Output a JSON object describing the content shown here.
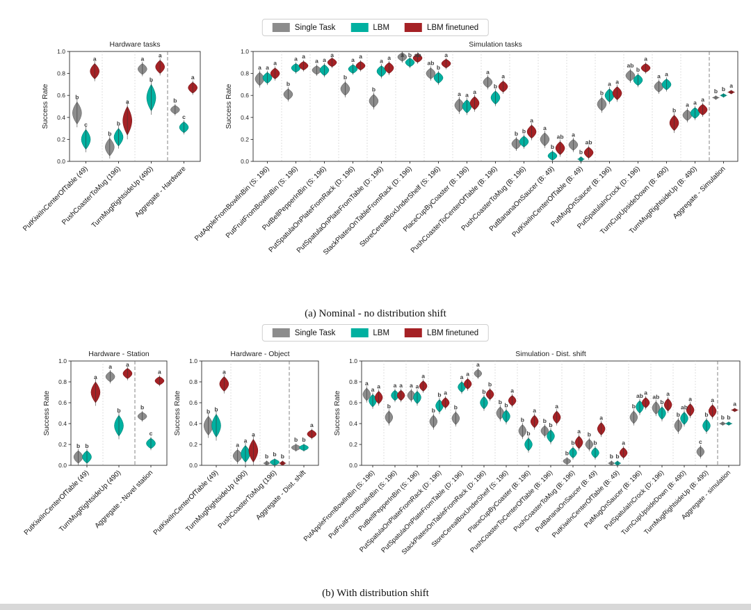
{
  "legend": {
    "items": [
      {
        "label": "Single Task",
        "color": "#8c8c8c"
      },
      {
        "label": "LBM",
        "color": "#00b0a0"
      },
      {
        "label": "LBM finetuned",
        "color": "#a52125"
      }
    ]
  },
  "panels": [
    {
      "caption": "(a) Nominal - no distribution shift"
    },
    {
      "caption": "(b) With distribution shift"
    }
  ],
  "chart_data": [
    {
      "panel": "a",
      "type": "violin",
      "title": "Hardware tasks",
      "ylabel": "Success Rate",
      "ylim": [
        0,
        1
      ],
      "yticks": [
        0,
        0.2,
        0.4,
        0.6,
        0.8,
        1.0
      ],
      "series": [
        "Single Task",
        "LBM",
        "LBM finetuned"
      ],
      "categories": [
        "PutKiwiInCenterOfTable (49)",
        "PushCoasterToMug (196)",
        "TurnMugRightsideUp (490)",
        "Aggregate - Hardware"
      ],
      "violins": [
        [
          [
            0.44,
            0.1,
            "b"
          ],
          [
            0.2,
            0.09,
            "c"
          ],
          [
            0.82,
            0.07,
            "a"
          ]
        ],
        [
          [
            0.13,
            0.08,
            "b"
          ],
          [
            0.22,
            0.08,
            "b"
          ],
          [
            0.37,
            0.13,
            "a"
          ]
        ],
        [
          [
            0.84,
            0.05,
            "a"
          ],
          [
            0.58,
            0.12,
            "b"
          ],
          [
            0.86,
            0.06,
            "a"
          ]
        ],
        [
          [
            0.47,
            0.04,
            "b"
          ],
          [
            0.31,
            0.05,
            "c"
          ],
          [
            0.67,
            0.05,
            "a"
          ]
        ]
      ]
    },
    {
      "panel": "a",
      "type": "violin",
      "title": "Simulation tasks",
      "ylabel": "Success Rate",
      "ylim": [
        0,
        1
      ],
      "yticks": [
        0,
        0.2,
        0.4,
        0.6,
        0.8,
        1.0
      ],
      "series": [
        "Single Task",
        "LBM",
        "LBM finetuned"
      ],
      "categories": [
        "PutAppleFromBowlInBin (S: 196)",
        "PutFruitFromBowlInBin (S: 196)",
        "PutBellPepperInBin (S: 196)",
        "PutSpatulaOnPlateFromRack (D: 196)",
        "PutSpatulaOnPlateFromTable (D: 196)",
        "StackPlatesOnTableFromRack (D: 196)",
        "StoreCerealBoxUnderShelf (S: 196)",
        "PlaceCupByCoaster (B: 196)",
        "PushCoasterToCenterOfTable (B: 196)",
        "PushCoasterToMug (B: 196)",
        "PutBananaOnSaucer (B: 49)",
        "PutKiwiInCenterOfTable (B: 49)",
        "PutMugOnSaucer (B: 196)",
        "PutSpatulaInCrock (D: 196)",
        "TurnCupUpsideDown (B: 490)",
        "TurnMugRightsideUp (B: 490)",
        "Aggregate - Simulation"
      ],
      "violins": [
        [
          [
            0.75,
            0.06,
            "a"
          ],
          [
            0.76,
            0.05,
            "a"
          ],
          [
            0.8,
            0.05,
            "a"
          ]
        ],
        [
          [
            0.61,
            0.05,
            "b"
          ],
          [
            0.85,
            0.04,
            "a"
          ],
          [
            0.87,
            0.04,
            "a"
          ]
        ],
        [
          [
            0.83,
            0.04,
            "a"
          ],
          [
            0.83,
            0.05,
            "a"
          ],
          [
            0.9,
            0.04,
            "a"
          ]
        ],
        [
          [
            0.66,
            0.06,
            "b"
          ],
          [
            0.84,
            0.04,
            "a"
          ],
          [
            0.87,
            0.04,
            "a"
          ]
        ],
        [
          [
            0.55,
            0.06,
            "b"
          ],
          [
            0.82,
            0.05,
            "a"
          ],
          [
            0.85,
            0.05,
            "a"
          ]
        ],
        [
          [
            0.95,
            0.04,
            "a"
          ],
          [
            0.9,
            0.04,
            "b"
          ],
          [
            0.94,
            0.04,
            "ab"
          ]
        ],
        [
          [
            0.8,
            0.05,
            "ab"
          ],
          [
            0.76,
            0.05,
            "b"
          ],
          [
            0.89,
            0.04,
            "a"
          ]
        ],
        [
          [
            0.51,
            0.06,
            "a"
          ],
          [
            0.5,
            0.06,
            "a"
          ],
          [
            0.53,
            0.06,
            "a"
          ]
        ],
        [
          [
            0.72,
            0.05,
            "a"
          ],
          [
            0.58,
            0.06,
            "b"
          ],
          [
            0.68,
            0.05,
            "a"
          ]
        ],
        [
          [
            0.16,
            0.05,
            "b"
          ],
          [
            0.18,
            0.05,
            "b"
          ],
          [
            0.27,
            0.06,
            "a"
          ]
        ],
        [
          [
            0.2,
            0.06,
            "a"
          ],
          [
            0.05,
            0.04,
            "b"
          ],
          [
            0.12,
            0.06,
            "ab"
          ]
        ],
        [
          [
            0.15,
            0.05,
            "a"
          ],
          [
            0.02,
            0.02,
            "b"
          ],
          [
            0.08,
            0.05,
            "ab"
          ]
        ],
        [
          [
            0.52,
            0.06,
            "b"
          ],
          [
            0.6,
            0.06,
            "a"
          ],
          [
            0.62,
            0.06,
            "a"
          ]
        ],
        [
          [
            0.78,
            0.05,
            "ab"
          ],
          [
            0.74,
            0.05,
            "b"
          ],
          [
            0.85,
            0.04,
            "a"
          ]
        ],
        [
          [
            0.68,
            0.05,
            "a"
          ],
          [
            0.7,
            0.05,
            "a"
          ],
          [
            0.35,
            0.07,
            "b"
          ]
        ],
        [
          [
            0.42,
            0.05,
            "a"
          ],
          [
            0.44,
            0.05,
            "a"
          ],
          [
            0.47,
            0.05,
            "a"
          ]
        ],
        [
          [
            0.58,
            0.015,
            "b"
          ],
          [
            0.6,
            0.015,
            "b"
          ],
          [
            0.63,
            0.015,
            "a"
          ]
        ]
      ]
    },
    {
      "panel": "b",
      "type": "violin",
      "title": "Hardware - Station",
      "ylabel": "Success Rate",
      "ylim": [
        0,
        1
      ],
      "yticks": [
        0,
        0.2,
        0.4,
        0.6,
        0.8,
        1.0
      ],
      "series": [
        "Single Task",
        "LBM",
        "LBM finetuned"
      ],
      "categories": [
        "PutKiwiInCenterOfTable (49)",
        "TurnMugRightsideUp (490)",
        "Aggregate - Novel station"
      ],
      "violins": [
        [
          [
            0.08,
            0.06,
            "b"
          ],
          [
            0.08,
            0.06,
            "b"
          ],
          [
            0.7,
            0.1,
            "a"
          ]
        ],
        [
          [
            0.85,
            0.05,
            "a"
          ],
          [
            0.38,
            0.1,
            "b"
          ],
          [
            0.88,
            0.05,
            "a"
          ]
        ],
        [
          [
            0.47,
            0.04,
            "b"
          ],
          [
            0.21,
            0.05,
            "c"
          ],
          [
            0.81,
            0.04,
            "a"
          ]
        ]
      ]
    },
    {
      "panel": "b",
      "type": "violin",
      "title": "Hardware - Object",
      "ylabel": "Success Rate",
      "ylim": [
        0,
        1
      ],
      "yticks": [
        0,
        0.2,
        0.4,
        0.6,
        0.8,
        1.0
      ],
      "series": [
        "Single Task",
        "LBM",
        "LBM finetuned"
      ],
      "categories": [
        "PutKiwiInCenterOfTable (49)",
        "TurnMugRightsideUp (490)",
        "PushCoasterToMug (196)",
        "Aggregate - Dist. shift"
      ],
      "violins": [
        [
          [
            0.38,
            0.09,
            "b"
          ],
          [
            0.38,
            0.11,
            "b"
          ],
          [
            0.78,
            0.07,
            "a"
          ]
        ],
        [
          [
            0.09,
            0.06,
            "a"
          ],
          [
            0.11,
            0.08,
            "a"
          ],
          [
            0.14,
            0.11,
            "a"
          ]
        ],
        [
          [
            0.02,
            0.02,
            "b"
          ],
          [
            0.03,
            0.03,
            "b"
          ],
          [
            0.02,
            0.02,
            "b"
          ]
        ],
        [
          [
            0.17,
            0.03,
            "b"
          ],
          [
            0.17,
            0.03,
            "b"
          ],
          [
            0.3,
            0.04,
            "a"
          ]
        ]
      ]
    },
    {
      "panel": "b",
      "type": "violin",
      "title": "Simulation - Dist. shift",
      "ylabel": "Success Rate",
      "ylim": [
        0,
        1
      ],
      "yticks": [
        0,
        0.2,
        0.4,
        0.6,
        0.8,
        1.0
      ],
      "series": [
        "Single Task",
        "LBM",
        "LBM finetuned"
      ],
      "categories": [
        "PutAppleFromBowlInBin (S: 196)",
        "PutFruitFromBowlInBin (S: 196)",
        "PutBellPepperInBin (S: 196)",
        "PutSpatulaOnPlateFromRack (D: 196)",
        "PutSpatulaOnPlateFromTable (D: 196)",
        "StackPlatesOnTableFromRack (D: 196)",
        "StoreCerealBoxUnderShelf (S: 196)",
        "PlaceCupByCoaster (B: 196)",
        "PushCoasterToCenterOfTable (B: 196)",
        "PushCoasterToMug (B: 196)",
        "PutBananaOnSaucer (B: 49)",
        "PutKiwiInCenterOfTable (B: 49)",
        "PutMugOnSaucer (B: 196)",
        "PutSpatulaInCrock (D: 196)",
        "TurnCupUpsideDown (B: 490)",
        "TurnMugRightsideUp (B: 490)",
        "Aggregate - simulation"
      ],
      "violins": [
        [
          [
            0.68,
            0.06,
            "a"
          ],
          [
            0.62,
            0.06,
            "a"
          ],
          [
            0.65,
            0.06,
            "a"
          ]
        ],
        [
          [
            0.46,
            0.06,
            "b"
          ],
          [
            0.67,
            0.05,
            "a"
          ],
          [
            0.67,
            0.05,
            "a"
          ]
        ],
        [
          [
            0.67,
            0.05,
            "a"
          ],
          [
            0.65,
            0.06,
            "a"
          ],
          [
            0.76,
            0.05,
            "a"
          ]
        ],
        [
          [
            0.42,
            0.06,
            "b"
          ],
          [
            0.57,
            0.06,
            "b"
          ],
          [
            0.6,
            0.05,
            "a"
          ]
        ],
        [
          [
            0.45,
            0.06,
            "b"
          ],
          [
            0.75,
            0.05,
            "a"
          ],
          [
            0.78,
            0.05,
            "a"
          ]
        ],
        [
          [
            0.88,
            0.04,
            "a"
          ],
          [
            0.6,
            0.06,
            "b"
          ],
          [
            0.68,
            0.05,
            "b"
          ]
        ],
        [
          [
            0.5,
            0.06,
            "b"
          ],
          [
            0.47,
            0.06,
            "b"
          ],
          [
            0.62,
            0.05,
            "a"
          ]
        ],
        [
          [
            0.33,
            0.06,
            "b"
          ],
          [
            0.2,
            0.06,
            "b"
          ],
          [
            0.42,
            0.06,
            "a"
          ]
        ],
        [
          [
            0.33,
            0.05,
            "b"
          ],
          [
            0.28,
            0.06,
            "b"
          ],
          [
            0.46,
            0.06,
            "a"
          ]
        ],
        [
          [
            0.04,
            0.03,
            "b"
          ],
          [
            0.12,
            0.05,
            "b"
          ],
          [
            0.22,
            0.06,
            "a"
          ]
        ],
        [
          [
            0.2,
            0.05,
            "b"
          ],
          [
            0.12,
            0.05,
            "b"
          ],
          [
            0.35,
            0.06,
            "a"
          ]
        ],
        [
          [
            0.02,
            0.02,
            "b"
          ],
          [
            0.02,
            0.02,
            "b"
          ],
          [
            0.12,
            0.05,
            "a"
          ]
        ],
        [
          [
            0.46,
            0.06,
            "b"
          ],
          [
            0.56,
            0.06,
            "ab"
          ],
          [
            0.6,
            0.05,
            "a"
          ]
        ],
        [
          [
            0.55,
            0.06,
            "ab"
          ],
          [
            0.5,
            0.06,
            "b"
          ],
          [
            0.58,
            0.06,
            "a"
          ]
        ],
        [
          [
            0.38,
            0.06,
            "b"
          ],
          [
            0.45,
            0.06,
            "ab"
          ],
          [
            0.53,
            0.06,
            "a"
          ]
        ],
        [
          [
            0.13,
            0.05,
            "c"
          ],
          [
            0.38,
            0.06,
            "b"
          ],
          [
            0.52,
            0.06,
            "a"
          ]
        ],
        [
          [
            0.4,
            0.015,
            "b"
          ],
          [
            0.4,
            0.015,
            "b"
          ],
          [
            0.53,
            0.015,
            "a"
          ]
        ]
      ]
    }
  ]
}
